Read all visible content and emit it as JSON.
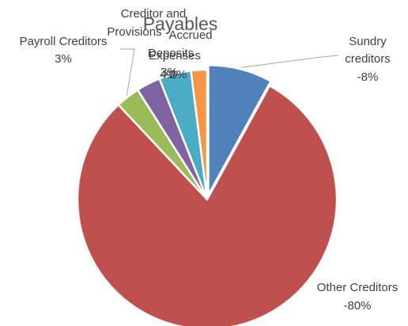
{
  "chart_data": {
    "type": "pie",
    "title": "Payables",
    "slices": [
      {
        "name": "Sundry creditors",
        "value_label": "-8%",
        "value": 8,
        "color": "#4f81bd"
      },
      {
        "name": "Other Creditors",
        "value_label": "-80%",
        "value": 80,
        "color": "#c0504d"
      },
      {
        "name": "Payroll Creditors",
        "value_label": "3%",
        "value": 3,
        "color": "#9bbb59"
      },
      {
        "name": "Creditor and Provisions",
        "value_label": "3%",
        "value": 3,
        "color": "#8064a2"
      },
      {
        "name": "Deposits",
        "value_label": "4%",
        "value": 4,
        "color": "#4bacc6"
      },
      {
        "name": "Accrued Expenses",
        "value_label": "-2%",
        "value": 2,
        "color": "#f79646"
      }
    ]
  }
}
